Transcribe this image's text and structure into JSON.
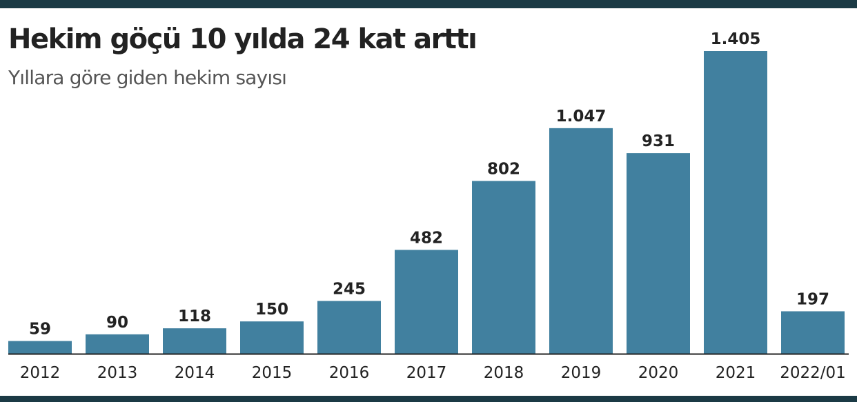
{
  "header": {
    "title": "Hekim göçü 10 yılda 24 kat arttı",
    "subtitle": "Yıllara göre giden hekim sayısı"
  },
  "colors": {
    "bar": "#41809f",
    "frame": "#1b3a45",
    "axis": "#222222",
    "text": "#222222"
  },
  "chart_data": {
    "type": "bar",
    "title": "Hekim göçü 10 yılda 24 kat arttı",
    "subtitle": "Yıllara göre giden hekim sayısı",
    "xlabel": "",
    "ylabel": "",
    "categories": [
      "2012",
      "2013",
      "2014",
      "2015",
      "2016",
      "2017",
      "2018",
      "2019",
      "2020",
      "2021",
      "2022/01"
    ],
    "values": [
      59,
      90,
      118,
      150,
      245,
      482,
      802,
      1047,
      931,
      1405,
      197
    ],
    "value_labels": [
      "59",
      "90",
      "118",
      "150",
      "245",
      "482",
      "802",
      "1.047",
      "931",
      "1.405",
      "197"
    ],
    "ylim": [
      0,
      1405
    ],
    "grid": false,
    "legend": "none"
  }
}
